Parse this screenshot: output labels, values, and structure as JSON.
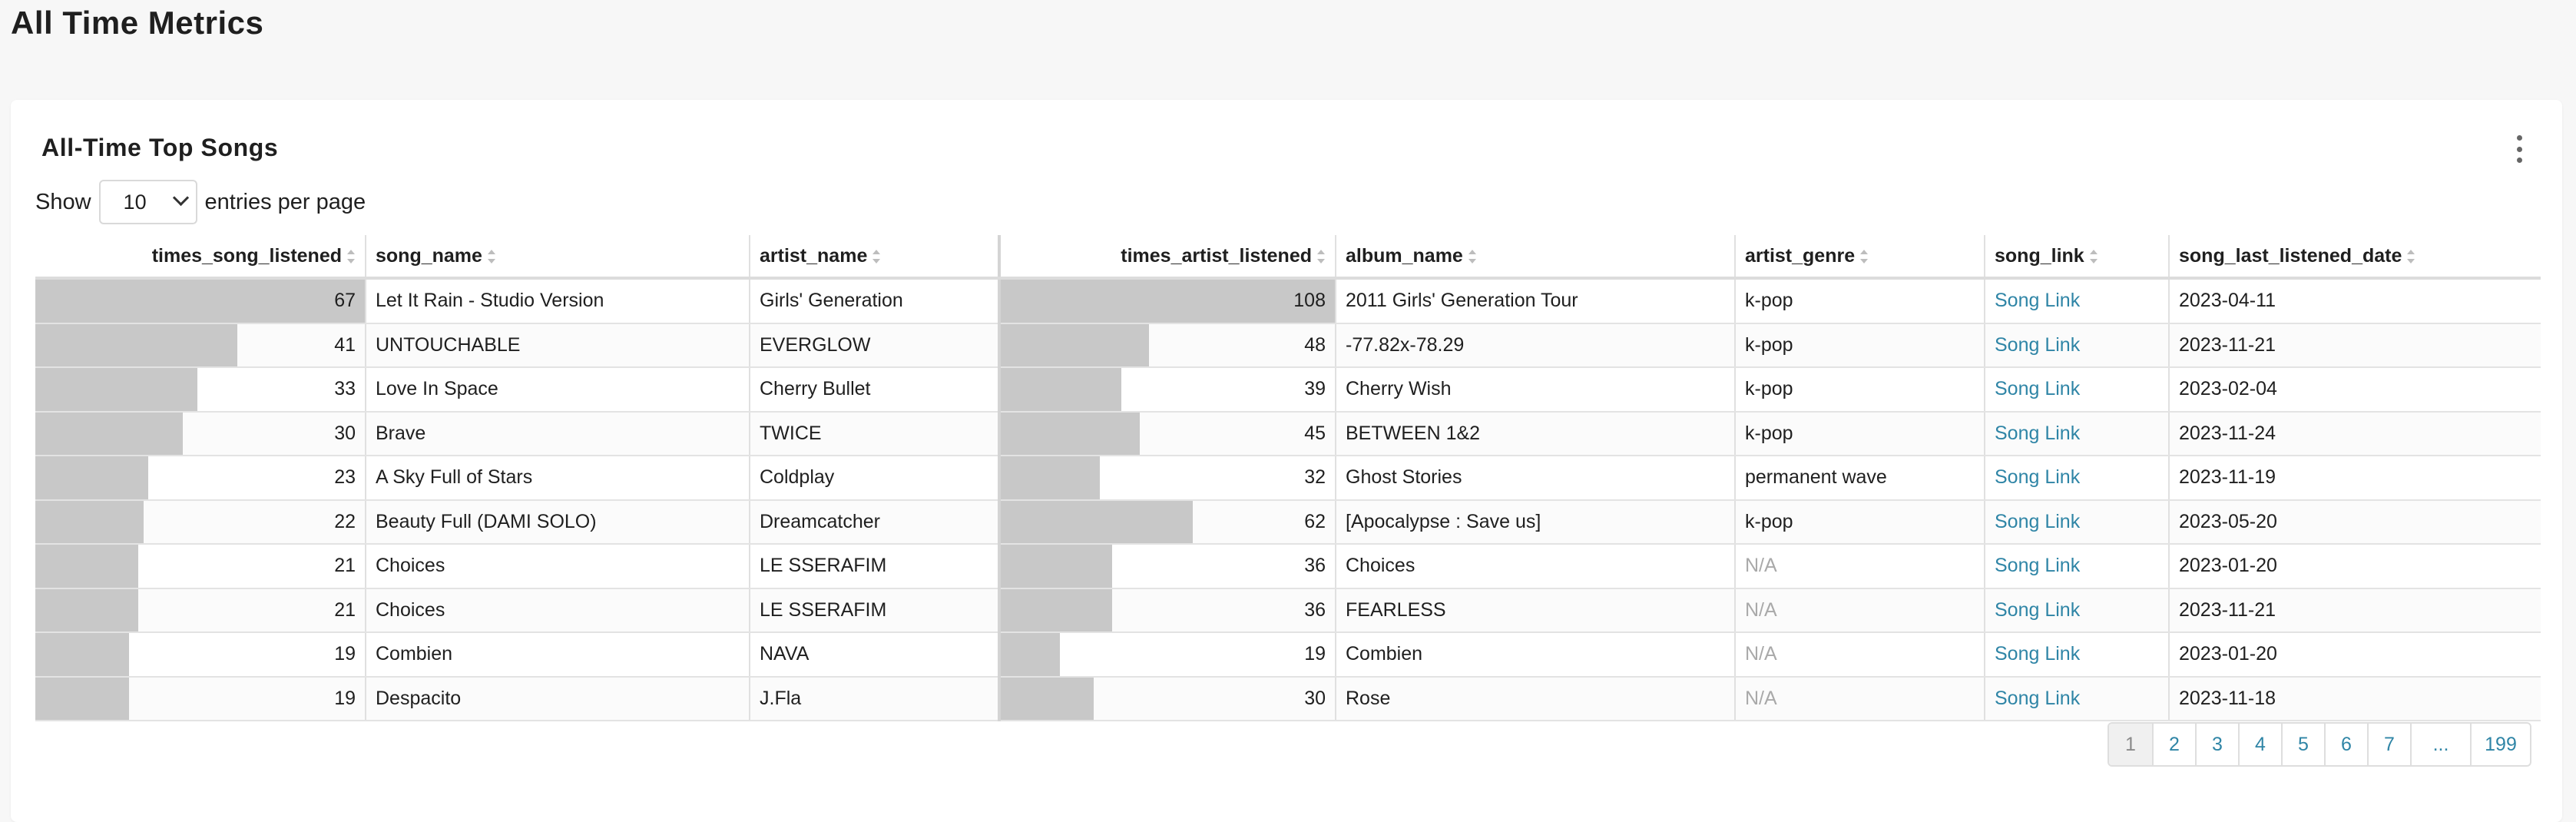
{
  "page": {
    "title": "All Time Metrics"
  },
  "card": {
    "title": "All-Time Top Songs"
  },
  "length_menu": {
    "prefix": "Show",
    "value": "10",
    "suffix": "entries per page"
  },
  "columns": [
    "times_song_listened",
    "song_name",
    "artist_name",
    "times_artist_listened",
    "album_name",
    "artist_genre",
    "song_link",
    "song_last_listened_date"
  ],
  "bar_max": {
    "times_song_listened": 67,
    "times_artist_listened": 108
  },
  "rows": [
    {
      "times_song_listened": "67",
      "song_name": "Let It Rain - Studio Version",
      "artist_name": "Girls' Generation",
      "times_artist_listened": "108",
      "album_name": "2011 Girls' Generation Tour",
      "artist_genre": "k-pop",
      "song_link": "Song Link",
      "song_last_listened_date": "2023-04-11"
    },
    {
      "times_song_listened": "41",
      "song_name": "UNTOUCHABLE",
      "artist_name": "EVERGLOW",
      "times_artist_listened": "48",
      "album_name": "-77.82x-78.29",
      "artist_genre": "k-pop",
      "song_link": "Song Link",
      "song_last_listened_date": "2023-11-21"
    },
    {
      "times_song_listened": "33",
      "song_name": "Love In Space",
      "artist_name": "Cherry Bullet",
      "times_artist_listened": "39",
      "album_name": "Cherry Wish",
      "artist_genre": "k-pop",
      "song_link": "Song Link",
      "song_last_listened_date": "2023-02-04"
    },
    {
      "times_song_listened": "30",
      "song_name": "Brave",
      "artist_name": "TWICE",
      "times_artist_listened": "45",
      "album_name": "BETWEEN 1&2",
      "artist_genre": "k-pop",
      "song_link": "Song Link",
      "song_last_listened_date": "2023-11-24"
    },
    {
      "times_song_listened": "23",
      "song_name": "A Sky Full of Stars",
      "artist_name": "Coldplay",
      "times_artist_listened": "32",
      "album_name": "Ghost Stories",
      "artist_genre": "permanent wave",
      "song_link": "Song Link",
      "song_last_listened_date": "2023-11-19"
    },
    {
      "times_song_listened": "22",
      "song_name": "Beauty Full (DAMI SOLO)",
      "artist_name": "Dreamcatcher",
      "times_artist_listened": "62",
      "album_name": "[Apocalypse : Save us]",
      "artist_genre": "k-pop",
      "song_link": "Song Link",
      "song_last_listened_date": "2023-05-20"
    },
    {
      "times_song_listened": "21",
      "song_name": "Choices",
      "artist_name": "LE SSERAFIM",
      "times_artist_listened": "36",
      "album_name": "Choices",
      "artist_genre": "N/A",
      "song_link": "Song Link",
      "song_last_listened_date": "2023-01-20"
    },
    {
      "times_song_listened": "21",
      "song_name": "Choices",
      "artist_name": "LE SSERAFIM",
      "times_artist_listened": "36",
      "album_name": "FEARLESS",
      "artist_genre": "N/A",
      "song_link": "Song Link",
      "song_last_listened_date": "2023-11-21"
    },
    {
      "times_song_listened": "19",
      "song_name": "Combien",
      "artist_name": "NAVA",
      "times_artist_listened": "19",
      "album_name": "Combien",
      "artist_genre": "N/A",
      "song_link": "Song Link",
      "song_last_listened_date": "2023-01-20"
    },
    {
      "times_song_listened": "19",
      "song_name": "Despacito",
      "artist_name": "J.Fla",
      "times_artist_listened": "30",
      "album_name": "Rose",
      "artist_genre": "N/A",
      "song_link": "Song Link",
      "song_last_listened_date": "2023-11-18"
    }
  ],
  "pagination": [
    "1",
    "2",
    "3",
    "4",
    "5",
    "6",
    "7",
    "...",
    "199"
  ],
  "pagination_active": "1",
  "colors": {
    "bar": "#c8c8c8",
    "link": "#2f85a6",
    "na": "#a9a9a9"
  }
}
